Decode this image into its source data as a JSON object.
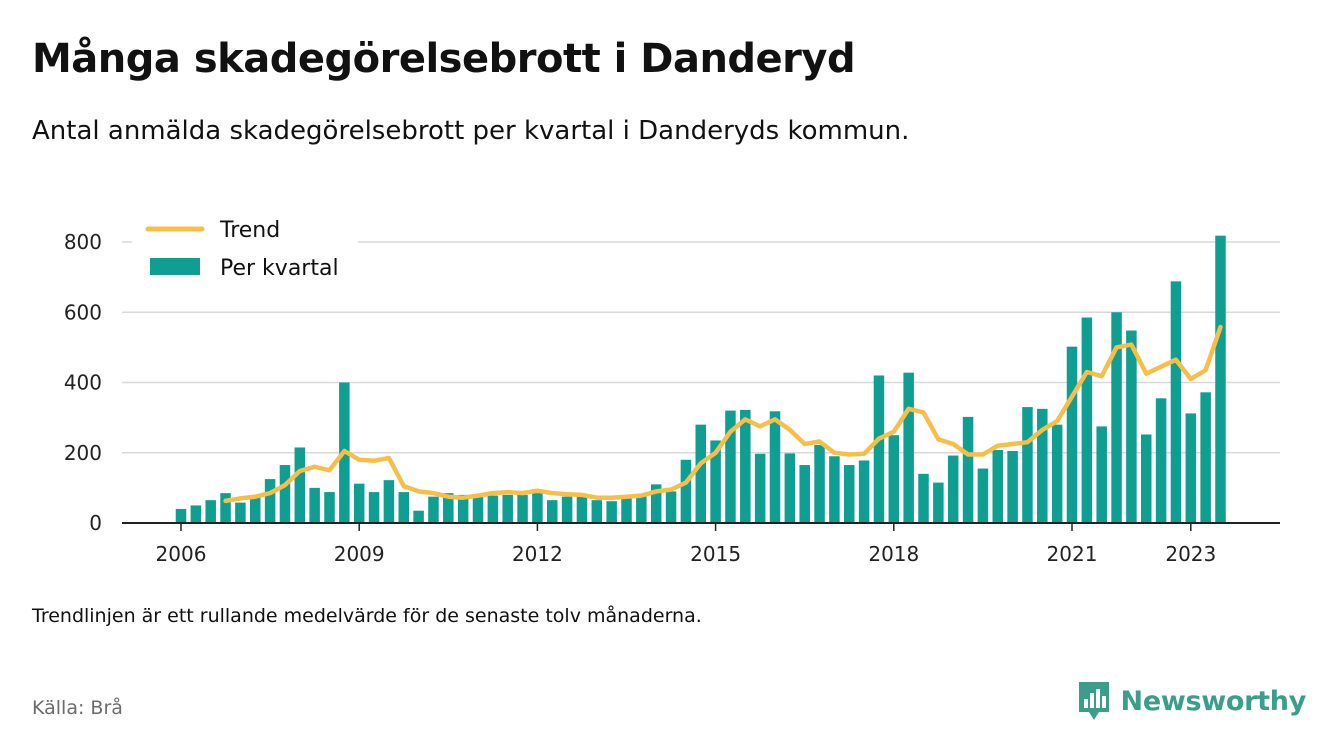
{
  "title": "Många skadegörelsebrott i Danderyd",
  "subtitle": "Antal anmälda skadegörelsebrott per kvartal i Danderyds kommun.",
  "note": "Trendlinjen är ett rullande medelvärde för de senaste tolv månaderna.",
  "source": "Källa: Brå",
  "brand": "Newsworthy",
  "colors": {
    "bars": "#0e9e92",
    "trend": "#f7bf4a",
    "grid": "#d9d9d9",
    "axis": "#222222"
  },
  "chart_data": {
    "type": "bar",
    "title": "",
    "xlabel": "",
    "ylabel": "",
    "ylim": [
      0,
      800
    ],
    "yticks": [
      0,
      200,
      400,
      600,
      800
    ],
    "xticks": [
      {
        "label": "2006",
        "index": 0
      },
      {
        "label": "2009",
        "index": 12
      },
      {
        "label": "2012",
        "index": 24
      },
      {
        "label": "2015",
        "index": 36
      },
      {
        "label": "2018",
        "index": 48
      },
      {
        "label": "2021",
        "index": 60
      },
      {
        "label": "2023",
        "index": 68
      }
    ],
    "grid": true,
    "legend": "top-left",
    "categories": [
      "2006 Q1",
      "2006 Q2",
      "2006 Q3",
      "2006 Q4",
      "2007 Q1",
      "2007 Q2",
      "2007 Q3",
      "2007 Q4",
      "2008 Q1",
      "2008 Q2",
      "2008 Q3",
      "2008 Q4",
      "2009 Q1",
      "2009 Q2",
      "2009 Q3",
      "2009 Q4",
      "2010 Q1",
      "2010 Q2",
      "2010 Q3",
      "2010 Q4",
      "2011 Q1",
      "2011 Q2",
      "2011 Q3",
      "2011 Q4",
      "2012 Q1",
      "2012 Q2",
      "2012 Q3",
      "2012 Q4",
      "2013 Q1",
      "2013 Q2",
      "2013 Q3",
      "2013 Q4",
      "2014 Q1",
      "2014 Q2",
      "2014 Q3",
      "2014 Q4",
      "2015 Q1",
      "2015 Q2",
      "2015 Q3",
      "2015 Q4",
      "2016 Q1",
      "2016 Q2",
      "2016 Q3",
      "2016 Q4",
      "2017 Q1",
      "2017 Q2",
      "2017 Q3",
      "2017 Q4",
      "2018 Q1",
      "2018 Q2",
      "2018 Q3",
      "2018 Q4",
      "2019 Q1",
      "2019 Q2",
      "2019 Q3",
      "2019 Q4",
      "2020 Q1",
      "2020 Q2",
      "2020 Q3",
      "2020 Q4",
      "2021 Q1",
      "2021 Q2",
      "2021 Q3",
      "2021 Q4",
      "2022 Q1",
      "2022 Q2",
      "2022 Q3",
      "2022 Q4",
      "2023 Q1",
      "2023 Q2",
      "2023 Q3"
    ],
    "series": [
      {
        "name": "Per kvartal",
        "kind": "bar",
        "values": [
          40,
          50,
          65,
          85,
          58,
          75,
          125,
          165,
          215,
          100,
          88,
          400,
          112,
          88,
          122,
          88,
          35,
          75,
          85,
          80,
          78,
          78,
          80,
          80,
          85,
          65,
          75,
          75,
          65,
          62,
          72,
          82,
          110,
          90,
          180,
          280,
          235,
          320,
          322,
          197,
          318,
          198,
          165,
          222,
          190,
          165,
          178,
          420,
          250,
          428,
          140,
          115,
          192,
          302,
          155,
          208,
          205,
          330,
          325,
          280,
          502,
          585,
          275,
          600,
          548,
          252,
          355,
          688,
          312,
          372,
          818
        ]
      },
      {
        "name": "Trend",
        "kind": "line",
        "values": [
          null,
          null,
          null,
          63,
          70,
          75,
          85,
          108,
          148,
          160,
          150,
          205,
          180,
          177,
          185,
          105,
          90,
          85,
          75,
          72,
          78,
          85,
          88,
          85,
          92,
          85,
          82,
          80,
          72,
          72,
          75,
          78,
          90,
          95,
          115,
          170,
          200,
          260,
          295,
          275,
          295,
          265,
          225,
          232,
          200,
          195,
          197,
          240,
          260,
          325,
          315,
          238,
          225,
          195,
          195,
          220,
          225,
          230,
          265,
          290,
          360,
          430,
          418,
          500,
          508,
          425,
          445,
          465,
          410,
          435,
          558
        ]
      }
    ]
  }
}
